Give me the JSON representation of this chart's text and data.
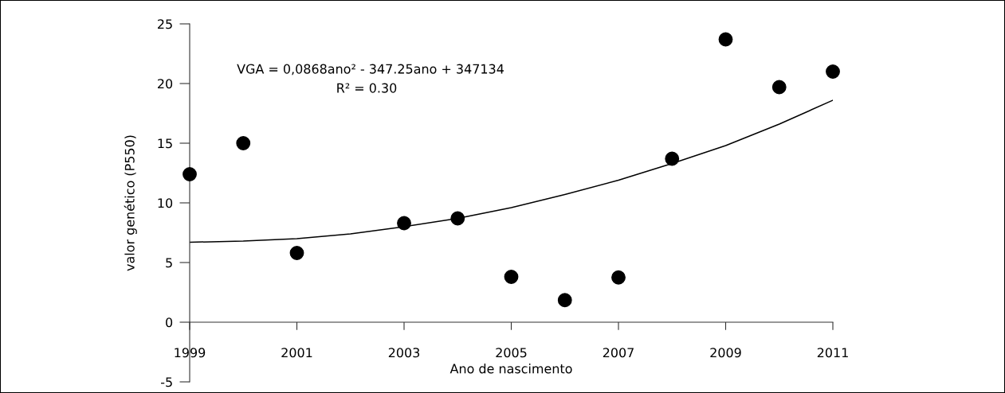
{
  "chart_data": {
    "type": "scatter",
    "xlabel": "Ano de nascimento",
    "ylabel": "valor genético (P550)",
    "annotations": [
      "VGA = 0,0868ano² - 347.25ano + 347134",
      "R² = 0.30"
    ],
    "xlim": [
      1999,
      2011
    ],
    "xticks": [
      1999,
      2001,
      2003,
      2005,
      2007,
      2009,
      2011
    ],
    "ylim": [
      -5,
      25
    ],
    "yticks": [
      -5,
      0,
      5,
      10,
      15,
      20,
      25
    ],
    "grid": false,
    "marker": "circle",
    "series": [
      {
        "color": "#000000",
        "x": [
          1999,
          2000,
          2001,
          2003,
          2004,
          2005,
          2006,
          2007,
          2008,
          2009,
          2010,
          2011
        ],
        "values": [
          12.4,
          15.0,
          5.8,
          8.3,
          8.7,
          3.8,
          1.85,
          3.75,
          13.7,
          23.7,
          19.7,
          21.0
        ]
      },
      {
        "type": "line",
        "color": "#000000",
        "marker": "none",
        "x": [
          1999,
          2000,
          2001,
          2002,
          2003,
          2004,
          2005,
          2006,
          2007,
          2008,
          2009,
          2010,
          2011
        ],
        "values": [
          6.7,
          6.8,
          7.0,
          7.4,
          8.0,
          8.7,
          9.6,
          10.7,
          11.9,
          13.3,
          14.8,
          16.6,
          18.6
        ]
      }
    ]
  }
}
